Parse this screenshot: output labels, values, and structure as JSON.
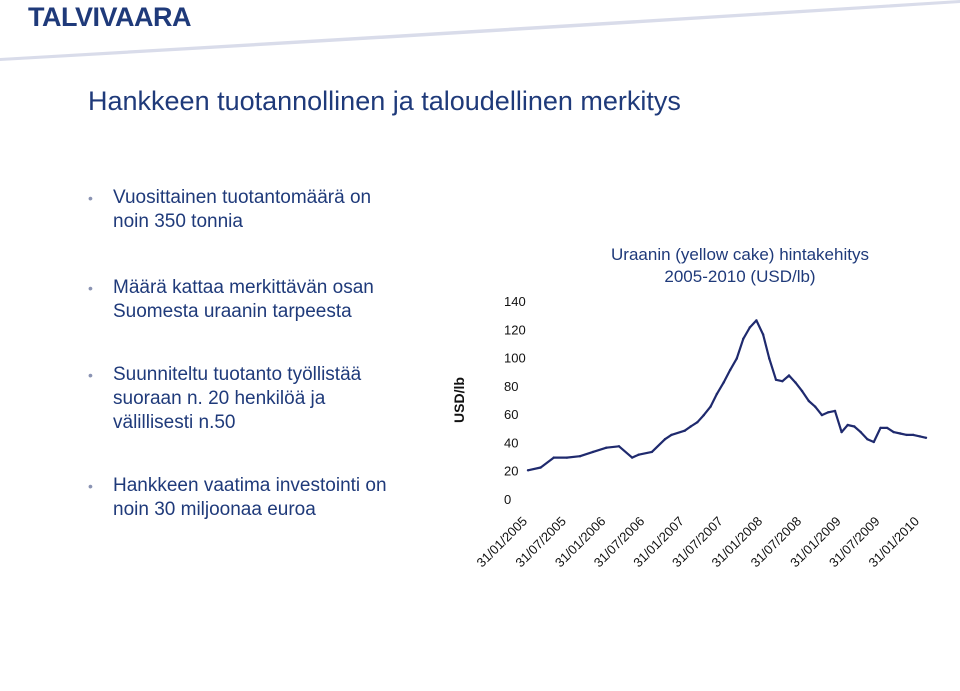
{
  "brand": {
    "logo_text": "TALVIVAARA",
    "color": "#1f3a7a",
    "curve_color": "#8a93b3"
  },
  "slide": {
    "title": "Hankkeen tuotannollinen ja taloudellinen merkitys",
    "bullets": [
      "Vuosittainen tuotantomäärä on\nnoin 350 tonnia",
      "Määrä kattaa merkittävän osan\nSuomesta uraanin tarpeesta",
      "Suunniteltu tuotanto työllistää\nsuoraan n. 20 henkilöä ja\nvälillisesti n.50",
      "Hankkeen vaatima investointi on\nnoin 30 miljoonaa euroa"
    ]
  },
  "chart_data": {
    "type": "line",
    "title": "Uraanin (yellow cake) hintakehitys\n2005-2010 (USD/lb)",
    "ylabel": "USD/lb",
    "xlabel": "",
    "ylim": [
      0,
      140
    ],
    "yticks": [
      0,
      20,
      40,
      60,
      80,
      100,
      120,
      140
    ],
    "xticks": [
      "31/01/2005",
      "31/07/2005",
      "31/01/2006",
      "31/07/2006",
      "31/01/2007",
      "31/07/2007",
      "31/01/2008",
      "31/07/2008",
      "31/01/2009",
      "31/07/2009",
      "31/01/2010"
    ],
    "grid": false,
    "legend": "none",
    "line_color": "#1f2a6e",
    "series": [
      {
        "name": "",
        "x": [
          "2005-01-31",
          "2005-03-31",
          "2005-05-31",
          "2005-07-31",
          "2005-09-30",
          "2005-11-30",
          "2006-01-31",
          "2006-03-31",
          "2006-05-31",
          "2006-06-30",
          "2006-08-31",
          "2006-10-31",
          "2006-11-30",
          "2007-01-31",
          "2007-02-28",
          "2007-03-31",
          "2007-04-30",
          "2007-05-31",
          "2007-06-30",
          "2007-07-31",
          "2007-08-31",
          "2007-09-30",
          "2007-10-31",
          "2007-11-30",
          "2007-12-31",
          "2008-01-31",
          "2008-02-29",
          "2008-03-31",
          "2008-04-30",
          "2008-05-31",
          "2008-06-30",
          "2008-07-31",
          "2008-08-31",
          "2008-09-30",
          "2008-10-31",
          "2008-11-30",
          "2008-12-31",
          "2009-01-31",
          "2009-02-28",
          "2009-03-31",
          "2009-04-30",
          "2009-05-31",
          "2009-06-30",
          "2009-07-31",
          "2009-08-31",
          "2009-09-30",
          "2009-10-31",
          "2009-11-30",
          "2009-12-31",
          "2010-01-31",
          "2010-02-28"
        ],
        "values": [
          21,
          23,
          30,
          30,
          31,
          34,
          37,
          38,
          30,
          32,
          34,
          43,
          46,
          49,
          52,
          55,
          60,
          66,
          75,
          83,
          92,
          100,
          114,
          122,
          127,
          117,
          100,
          85,
          84,
          88,
          83,
          77,
          70,
          66,
          60,
          62,
          63,
          48,
          53,
          52,
          48,
          43,
          41,
          51,
          51,
          48,
          47,
          46,
          46,
          45,
          44
        ]
      }
    ]
  }
}
